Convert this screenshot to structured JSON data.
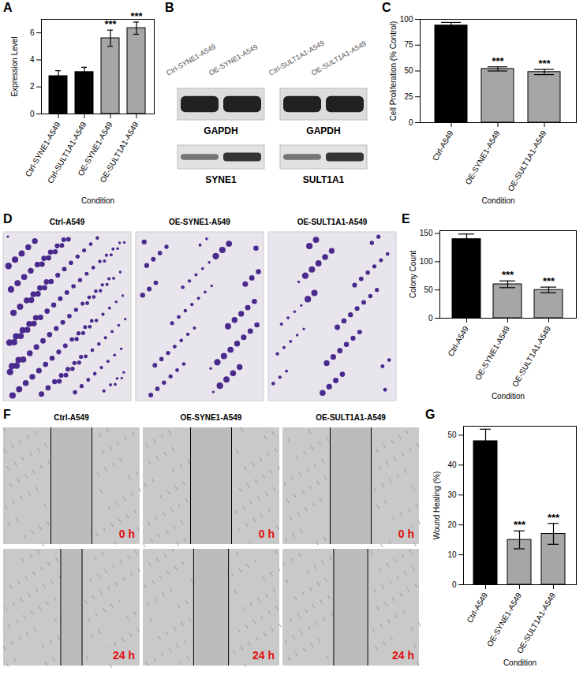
{
  "chart_data": [
    {
      "panel": "A",
      "type": "bar",
      "ylabel": "Expression Level",
      "xlabel": "Condition",
      "categories": [
        "Ctrl-SYNE1-A549",
        "Ctrl-SULT1A1-A549",
        "OE-SYNE1-A549",
        "OE-SULT1A1-A549"
      ],
      "values": [
        2.8,
        3.1,
        5.6,
        6.35
      ],
      "errors": [
        0.4,
        0.35,
        0.6,
        0.45
      ],
      "significance": [
        null,
        null,
        "***",
        "***"
      ],
      "colors": [
        "#000000",
        "#000000",
        "#a6a6a6",
        "#a6a6a6"
      ],
      "ylim": [
        0,
        7
      ],
      "yticks": [
        0,
        2,
        4,
        6
      ]
    },
    {
      "panel": "C",
      "type": "bar",
      "ylabel": "Cell Proliferation (% Control)",
      "xlabel": "Condition",
      "categories": [
        "Ctrl-A549",
        "OE-SYNE1-A549",
        "OE-SULT1A1-A549"
      ],
      "values": [
        94,
        52,
        49
      ],
      "errors": [
        3,
        2,
        2.5
      ],
      "significance": [
        null,
        "***",
        "***"
      ],
      "colors": [
        "#000000",
        "#a6a6a6",
        "#a6a6a6"
      ],
      "ylim": [
        0,
        100
      ],
      "yticks": [
        0,
        25,
        50,
        75,
        100
      ]
    },
    {
      "panel": "E",
      "type": "bar",
      "ylabel": "Colony Count",
      "xlabel": "Condition",
      "categories": [
        "Ctrl-A549",
        "OE-SYNE1-A549",
        "OE-SULT1A1-A549"
      ],
      "values": [
        140,
        60,
        50
      ],
      "errors": [
        9,
        6,
        5
      ],
      "significance": [
        null,
        "***",
        "***"
      ],
      "colors": [
        "#000000",
        "#a6a6a6",
        "#a6a6a6"
      ],
      "ylim": [
        0,
        155
      ],
      "yticks": [
        0,
        50,
        100,
        150
      ]
    },
    {
      "panel": "G",
      "type": "bar",
      "ylabel": "Wound Healing (%)",
      "xlabel": "Condition",
      "categories": [
        "Ctrl-A549",
        "OE-SYNE1-A549",
        "OE-SULT1A1-A549"
      ],
      "values": [
        48,
        15,
        17
      ],
      "errors": [
        4,
        3,
        3.5
      ],
      "significance": [
        null,
        "***",
        "***"
      ],
      "colors": [
        "#000000",
        "#a6a6a6",
        "#a6a6a6"
      ],
      "ylim": [
        0,
        53
      ],
      "yticks": [
        0,
        10,
        20,
        30,
        40,
        50
      ]
    }
  ],
  "blot": {
    "panel": "B",
    "lanes": [
      "Ctrl-SYNE1-A549",
      "OE-SYNE1-A549",
      "Ctrl-SULT1A1-A549",
      "OE-SULT1A1-A549"
    ],
    "groups": [
      {
        "loading": "GAPDH",
        "target": "SYNE1",
        "loading_intensity": [
          0.9,
          0.9
        ],
        "target_intensity": [
          0.45,
          0.8
        ]
      },
      {
        "loading": "GAPDH",
        "target": "SULT1A1",
        "loading_intensity": [
          0.9,
          0.9
        ],
        "target_intensity": [
          0.45,
          0.8
        ]
      }
    ]
  },
  "colony": {
    "panel": "D",
    "images": [
      "Ctrl-A549",
      "OE-SYNE1-A549",
      "OE-SULT1A1-A549"
    ]
  },
  "wound": {
    "panel": "F",
    "images": [
      "Ctrl-A549",
      "OE-SYNE1-A549",
      "OE-SULT1A1-A549"
    ],
    "times": [
      "0 h",
      "24 h"
    ]
  }
}
